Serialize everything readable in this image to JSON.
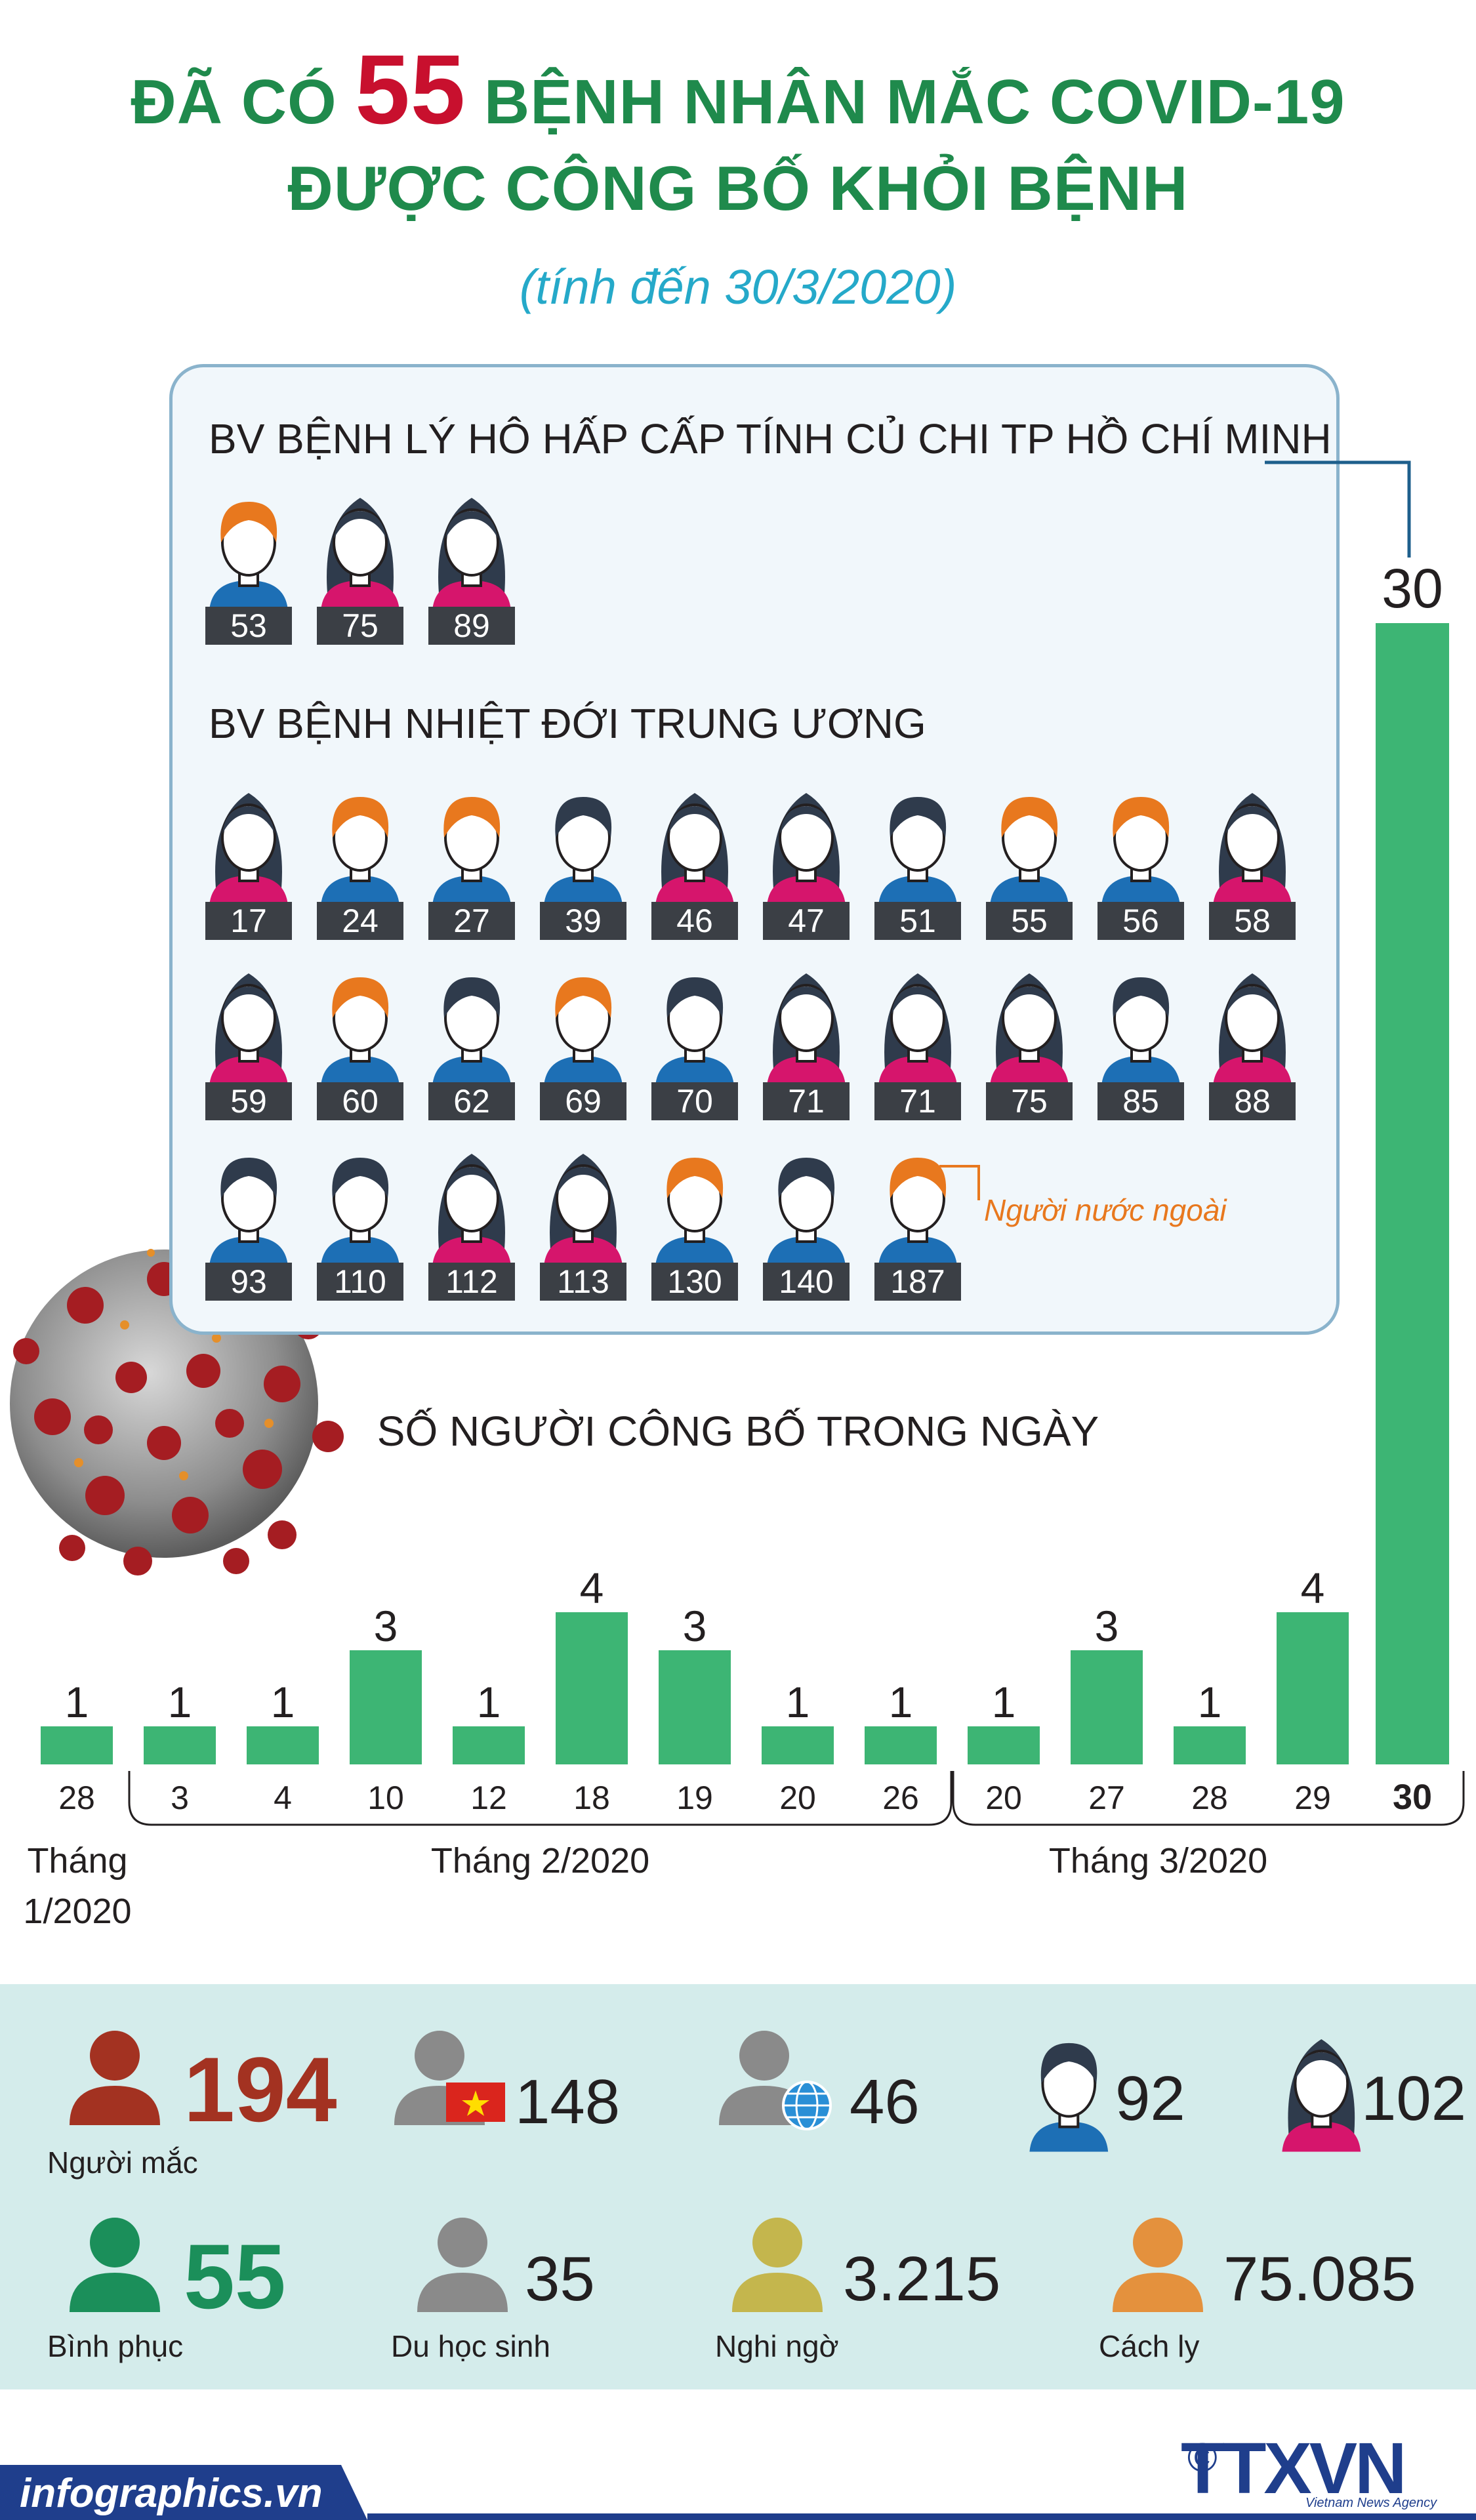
{
  "header": {
    "title_line1_pre": "ĐÃ CÓ",
    "title_line1_num": "55",
    "title_line1_post": "BỆNH NHÂN MẮC COVID-19",
    "title_line2": "ĐƯỢC CÔNG BỐ KHỎI BỆNH",
    "subtitle": "(tính đến 30/3/2020)"
  },
  "hospitals": [
    {
      "name": "BV BỆNH LÝ HÔ HẤP CẤP TÍNH CỦ CHI TP HỒ CHÍ MINH",
      "patients": [
        {
          "id": "53",
          "gender": "male",
          "foreign": true
        },
        {
          "id": "75",
          "gender": "female",
          "foreign": false
        },
        {
          "id": "89",
          "gender": "female",
          "foreign": false
        }
      ]
    },
    {
      "name": "BV BỆNH NHIỆT ĐỚI TRUNG ƯƠNG",
      "patients": [
        {
          "id": "17",
          "gender": "female",
          "foreign": false
        },
        {
          "id": "24",
          "gender": "male",
          "foreign": true
        },
        {
          "id": "27",
          "gender": "male",
          "foreign": true
        },
        {
          "id": "39",
          "gender": "male",
          "foreign": false
        },
        {
          "id": "46",
          "gender": "female",
          "foreign": false
        },
        {
          "id": "47",
          "gender": "female",
          "foreign": false
        },
        {
          "id": "51",
          "gender": "male",
          "foreign": false
        },
        {
          "id": "55",
          "gender": "male",
          "foreign": true
        },
        {
          "id": "56",
          "gender": "male",
          "foreign": true
        },
        {
          "id": "58",
          "gender": "female",
          "foreign": false
        },
        {
          "id": "59",
          "gender": "female",
          "foreign": false
        },
        {
          "id": "60",
          "gender": "male",
          "foreign": true
        },
        {
          "id": "62",
          "gender": "male",
          "foreign": false
        },
        {
          "id": "69",
          "gender": "male",
          "foreign": true
        },
        {
          "id": "70",
          "gender": "male",
          "foreign": false
        },
        {
          "id": "71",
          "gender": "female",
          "foreign": false
        },
        {
          "id": "71",
          "gender": "female",
          "foreign": false
        },
        {
          "id": "75",
          "gender": "female",
          "foreign": false
        },
        {
          "id": "85",
          "gender": "male",
          "foreign": false
        },
        {
          "id": "88",
          "gender": "female",
          "foreign": false
        },
        {
          "id": "93",
          "gender": "male",
          "foreign": false
        },
        {
          "id": "110",
          "gender": "male",
          "foreign": false
        },
        {
          "id": "112",
          "gender": "female",
          "foreign": false
        },
        {
          "id": "113",
          "gender": "female",
          "foreign": false
        },
        {
          "id": "130",
          "gender": "male",
          "foreign": true
        },
        {
          "id": "140",
          "gender": "male",
          "foreign": false
        },
        {
          "id": "187",
          "gender": "male",
          "foreign": true
        }
      ]
    }
  ],
  "legend": {
    "foreign_label": "Người nước ngoài"
  },
  "chart_data": {
    "type": "bar",
    "title": "SỐ NGƯỜI CÔNG BỐ TRONG NGÀY",
    "categories": [
      "28",
      "3",
      "4",
      "10",
      "12",
      "18",
      "19",
      "20",
      "26",
      "20",
      "27",
      "28",
      "29"
    ],
    "values": [
      1,
      1,
      1,
      3,
      1,
      4,
      3,
      1,
      1,
      1,
      3,
      1,
      4
    ],
    "month_groups": [
      {
        "label_line1": "Tháng",
        "label_line2": "1/2020",
        "count": 1
      },
      {
        "label_line1": "Tháng 2/2020",
        "label_line2": "",
        "count": 8
      },
      {
        "label_line1": "Tháng 3/2020",
        "label_line2": "",
        "count": 4
      }
    ],
    "cumulative": {
      "label": "30",
      "value": 30
    },
    "colors": {
      "bar": "#3db574",
      "bracket": "#231f20"
    }
  },
  "stats": [
    {
      "value": "194",
      "label": "Người mắc",
      "icon": "person-icon",
      "color": "#a33221",
      "highlight": true
    },
    {
      "value": "148",
      "label": "",
      "icon": "vietnam-flag-icon",
      "color": "#8a8a8a",
      "highlight": false
    },
    {
      "value": "46",
      "label": "",
      "icon": "globe-icon",
      "color": "#8a8a8a",
      "highlight": false
    },
    {
      "value": "92",
      "label": "",
      "icon": "male-icon",
      "color": "#1d6fb5",
      "highlight": false
    },
    {
      "value": "102",
      "label": "",
      "icon": "female-icon",
      "color": "#d6156c",
      "highlight": false
    },
    {
      "value": "55",
      "label": "Bình phục",
      "icon": "person-icon",
      "color": "#1b8f5a",
      "highlight": true
    },
    {
      "value": "35",
      "label": "Du học sinh",
      "icon": "person-icon",
      "color": "#8a8a8a",
      "highlight": false
    },
    {
      "value": "3.215",
      "label": "Nghi ngờ",
      "icon": "person-icon",
      "color": "#c4b64d",
      "highlight": false
    },
    {
      "value": "75.085",
      "label": "Cách ly",
      "icon": "person-icon",
      "color": "#e4913d",
      "highlight": false
    }
  ],
  "footer": {
    "site": "infographics.vn",
    "logo": "TTXVN",
    "logo_sub": "Vietnam News Agency",
    "copyright": "©"
  }
}
